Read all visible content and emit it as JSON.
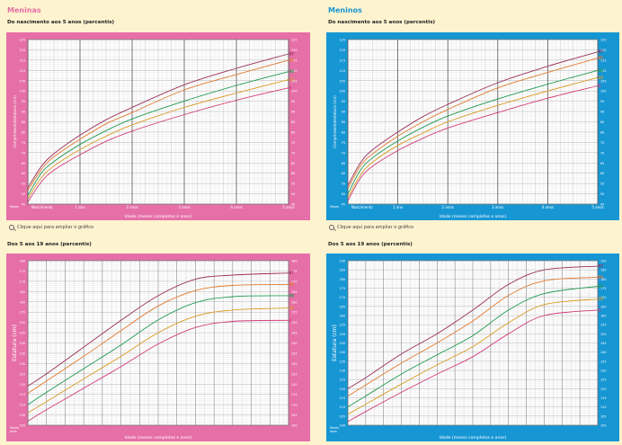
{
  "colors": {
    "girls": "#e66fa7",
    "boys": "#1796d4",
    "p97": "#9b2f5a",
    "p85": "#e07a2f",
    "p50": "#1f9a52",
    "p15": "#d99a22",
    "p3": "#d23c7c"
  },
  "left": {
    "gender": "Meninas",
    "top_sub": "Do nascimento aos 5 anos (percentis)",
    "zoom": "Clique aqui para ampliar o gráfico",
    "bottom_sub": "Dos 5 aos 19 anos (percentis)"
  },
  "right": {
    "gender": "Meninos",
    "top_sub": "Do nascimento aos 5 anos (percentis)",
    "zoom": "Clique aqui para ampliar o gráfico",
    "bottom_sub": "Dos 5 aos 19 anos (percentis)"
  },
  "chart_data": [
    {
      "type": "line",
      "panel": "girls_0_5",
      "ylabel": "Comprimento/estatura (cm)",
      "xlabel": "Idade (meses completos e anos)",
      "corner_label": "Meses",
      "x_major_labels": [
        "Nascimento",
        "1 ano",
        "2 anos",
        "3 anos",
        "4 anos",
        "5 anos"
      ],
      "x": [
        0,
        3,
        6,
        12,
        18,
        24,
        36,
        48,
        60
      ],
      "xlim": [
        0,
        60
      ],
      "ylim": [
        45,
        125
      ],
      "y_ticks": [
        "45",
        "50",
        "55",
        "60",
        "65",
        "70",
        "75",
        "80",
        "85",
        "90",
        "95",
        "100",
        "105",
        "110",
        "115",
        "120",
        "125"
      ],
      "series": [
        {
          "name": "97",
          "values": [
            53,
            63,
            69.5,
            78.5,
            86,
            92,
            103,
            111,
            118
          ]
        },
        {
          "name": "85",
          "values": [
            51.5,
            61.5,
            68,
            76.5,
            84,
            89.5,
            100.5,
            108,
            115
          ]
        },
        {
          "name": "50",
          "values": [
            49.1,
            59.8,
            65.7,
            74,
            80.7,
            86.4,
            95.1,
            102.7,
            109.4
          ]
        },
        {
          "name": "15",
          "values": [
            47.5,
            57.5,
            63.5,
            71.5,
            78,
            83.5,
            92,
            99,
            105.5
          ]
        },
        {
          "name": "3",
          "values": [
            46,
            55.5,
            61.5,
            69,
            75.5,
            80.5,
            88.5,
            95.5,
            101.5
          ]
        }
      ]
    },
    {
      "type": "line",
      "panel": "boys_0_5",
      "ylabel": "Comprimento/estatura (cm)",
      "xlabel": "Idade (meses completos e anos)",
      "corner_label": "Meses",
      "x_major_labels": [
        "Nascimento",
        "1 ano",
        "2 anos",
        "3 anos",
        "4 anos",
        "5 anos"
      ],
      "x": [
        0,
        3,
        6,
        12,
        18,
        24,
        36,
        48,
        60
      ],
      "xlim": [
        0,
        60
      ],
      "ylim": [
        45,
        125
      ],
      "y_ticks": [
        "45",
        "50",
        "55",
        "60",
        "65",
        "70",
        "75",
        "80",
        "85",
        "90",
        "95",
        "100",
        "105",
        "110",
        "115",
        "120",
        "125"
      ],
      "series": [
        {
          "name": "97",
          "values": [
            54,
            65,
            71.5,
            80,
            87.5,
            93.5,
            104,
            112,
            119
          ]
        },
        {
          "name": "85",
          "values": [
            52.5,
            63.5,
            69.5,
            78,
            85,
            91,
            101.5,
            109,
            116
          ]
        },
        {
          "name": "50",
          "values": [
            49.9,
            61.4,
            67.6,
            75.7,
            82.3,
            87.8,
            96.1,
            103.3,
            110
          ]
        },
        {
          "name": "15",
          "values": [
            48,
            59,
            65.5,
            73.5,
            79.5,
            85,
            93,
            100,
            106.5
          ]
        },
        {
          "name": "3",
          "values": [
            46.5,
            57.5,
            63.5,
            71,
            77,
            82,
            89.5,
            96.5,
            102.5
          ]
        }
      ]
    },
    {
      "type": "line",
      "panel": "girls_5_19",
      "ylabel": "Estatura (cm)",
      "xlabel": "Idade (meses completos e anos)",
      "corner_labels": [
        "Meses",
        "Anos"
      ],
      "x": [
        5,
        6,
        8,
        10,
        12,
        14,
        16,
        19
      ],
      "xlim": [
        5,
        19
      ],
      "ylim": [
        100,
        180
      ],
      "y_ticks": [
        "100",
        "105",
        "110",
        "115",
        "120",
        "125",
        "130",
        "135",
        "140",
        "145",
        "150",
        "155",
        "160",
        "165",
        "170",
        "175",
        "180"
      ],
      "series": [
        {
          "name": "97",
          "values": [
            119,
            125,
            138,
            151,
            163,
            171,
            173,
            174
          ]
        },
        {
          "name": "85",
          "values": [
            115.5,
            121.5,
            133.5,
            146,
            158,
            165.5,
            168,
            168.5
          ]
        },
        {
          "name": "50",
          "values": [
            110,
            116,
            127.5,
            139,
            151.2,
            159.6,
            162.5,
            163
          ]
        },
        {
          "name": "15",
          "values": [
            106,
            111.5,
            122.5,
            133.5,
            145,
            153,
            156,
            157
          ]
        },
        {
          "name": "3",
          "values": [
            102,
            107.5,
            118,
            128.5,
            139.5,
            147.5,
            150.5,
            151
          ]
        }
      ]
    },
    {
      "type": "line",
      "panel": "boys_5_19",
      "ylabel": "Estatura (cm)",
      "xlabel": "Idade (meses completos e anos)",
      "corner_labels": [
        "Meses",
        "Anos"
      ],
      "x": [
        5,
        6,
        8,
        10,
        12,
        14,
        16,
        19
      ],
      "xlim": [
        5,
        19
      ],
      "ylim": [
        100,
        190
      ],
      "y_ticks": [
        "100",
        "105",
        "110",
        "115",
        "120",
        "125",
        "130",
        "135",
        "140",
        "145",
        "150",
        "155",
        "160",
        "165",
        "170",
        "175",
        "180",
        "185",
        "190"
      ],
      "series": [
        {
          "name": "97",
          "values": [
            120,
            126,
            139,
            150,
            163,
            177,
            185,
            187
          ]
        },
        {
          "name": "85",
          "values": [
            116,
            122,
            134,
            145,
            157,
            171,
            179,
            181
          ]
        },
        {
          "name": "50",
          "values": [
            110,
            116,
            128,
            138.5,
            149,
            163,
            172,
            176
          ]
        },
        {
          "name": "15",
          "values": [
            106,
            111.5,
            122.5,
            133,
            143,
            156,
            166,
            169
          ]
        },
        {
          "name": "3",
          "values": [
            102,
            107.5,
            118,
            128,
            137.5,
            150,
            160,
            163
          ]
        }
      ]
    }
  ]
}
